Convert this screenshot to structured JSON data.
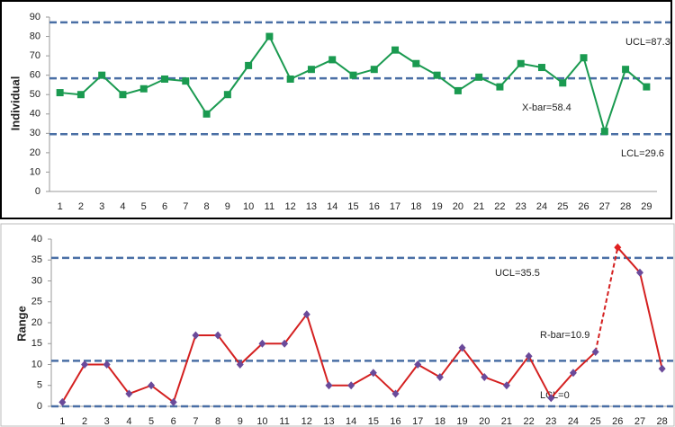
{
  "chart_data": [
    {
      "type": "line",
      "ylabel": "Individual",
      "categories": [
        "1",
        "2",
        "3",
        "4",
        "5",
        "6",
        "7",
        "8",
        "9",
        "10",
        "11",
        "12",
        "13",
        "14",
        "15",
        "16",
        "17",
        "18",
        "19",
        "20",
        "21",
        "22",
        "23",
        "24",
        "25",
        "26",
        "27",
        "28",
        "29"
      ],
      "series": [
        {
          "color": "#1a9a50",
          "marker": "square",
          "marker_color": "#1a9a50",
          "values": [
            51,
            50,
            60,
            50,
            53,
            58,
            57,
            40,
            50,
            65,
            80,
            58,
            63,
            68,
            60,
            63,
            73,
            66,
            60,
            52,
            59,
            54,
            66,
            64,
            56,
            69,
            31,
            63,
            54
          ]
        }
      ],
      "ylim": [
        0,
        90
      ],
      "yticks": [
        0,
        10,
        20,
        30,
        40,
        50,
        60,
        70,
        80,
        90
      ],
      "control_lines": [
        {
          "label": "UCL=87.3",
          "value": 87.3
        },
        {
          "label": "X-bar=58.4",
          "value": 58.4
        },
        {
          "label": "LCL=29.6",
          "value": 29.6
        }
      ],
      "control_color": "#4a6fa5"
    },
    {
      "type": "line",
      "ylabel": "Range",
      "categories": [
        "1",
        "2",
        "3",
        "4",
        "5",
        "6",
        "7",
        "8",
        "9",
        "10",
        "11",
        "12",
        "13",
        "14",
        "15",
        "16",
        "17",
        "18",
        "19",
        "20",
        "21",
        "22",
        "23",
        "24",
        "25",
        "26",
        "27",
        "28"
      ],
      "series": [
        {
          "color": "#d42020",
          "marker": "diamond",
          "marker_color": "#6a4a9a",
          "highlight_color": "#e02020",
          "highlight_index": 25,
          "values": [
            1,
            10,
            10,
            3,
            5,
            1,
            17,
            17,
            10,
            15,
            15,
            22,
            5,
            5,
            8,
            3,
            10,
            7,
            14,
            7,
            5,
            12,
            2,
            8,
            13,
            38,
            32,
            9
          ]
        }
      ],
      "ylim": [
        0,
        40
      ],
      "yticks": [
        0,
        5,
        10,
        15,
        20,
        25,
        30,
        35,
        40
      ],
      "control_lines": [
        {
          "label": "UCL=35.5",
          "value": 35.5
        },
        {
          "label": "R-bar=10.9",
          "value": 10.9
        },
        {
          "label": "LCL=0",
          "value": 0
        }
      ],
      "control_color": "#4a6fa5"
    }
  ]
}
